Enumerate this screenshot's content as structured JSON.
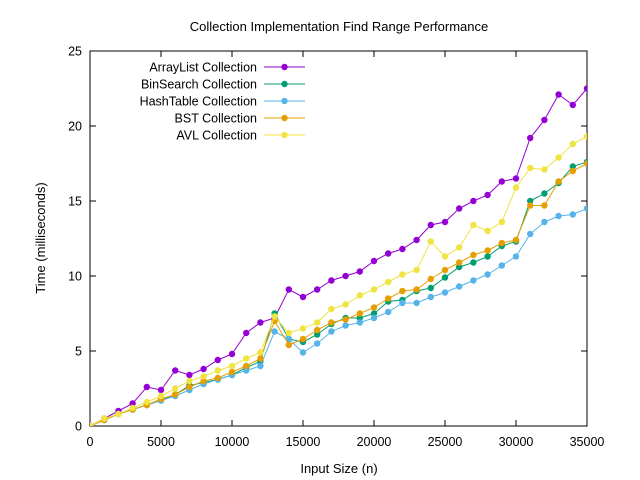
{
  "chart_data": {
    "type": "line",
    "title": "Collection Implementation Find Range Performance",
    "xlabel": "Input Size (n)",
    "ylabel": "Time (milliseconds)",
    "xlim": [
      0,
      35000
    ],
    "ylim": [
      0,
      25
    ],
    "xticks": [
      0,
      5000,
      10000,
      15000,
      20000,
      25000,
      30000,
      35000
    ],
    "yticks": [
      0,
      5,
      10,
      15,
      20,
      25
    ],
    "grid": false,
    "legend_position": "top-left",
    "x": [
      0,
      1000,
      2000,
      3000,
      4000,
      5000,
      6000,
      7000,
      8000,
      9000,
      10000,
      11000,
      12000,
      13000,
      14000,
      15000,
      16000,
      17000,
      18000,
      19000,
      20000,
      21000,
      22000,
      23000,
      24000,
      25000,
      26000,
      27000,
      28000,
      29000,
      30000,
      31000,
      32000,
      33000,
      34000,
      35000
    ],
    "series": [
      {
        "name": "ArrayList Collection",
        "color": "#9400d3",
        "values": [
          0.0,
          0.5,
          1.0,
          1.5,
          2.6,
          2.4,
          3.7,
          3.4,
          3.8,
          4.4,
          4.8,
          6.2,
          6.9,
          7.2,
          9.1,
          8.6,
          9.1,
          9.7,
          10.0,
          10.3,
          11.0,
          11.5,
          11.8,
          12.4,
          13.4,
          13.6,
          14.5,
          15.0,
          15.4,
          16.3,
          16.5,
          19.2,
          20.4,
          22.1,
          21.4,
          22.5
        ]
      },
      {
        "name": "BinSearch Collection",
        "color": "#009e73",
        "values": [
          0.0,
          0.4,
          0.8,
          1.1,
          1.4,
          1.7,
          2.1,
          2.7,
          2.9,
          3.1,
          3.4,
          3.9,
          4.3,
          7.5,
          5.8,
          5.6,
          6.1,
          6.8,
          7.2,
          7.2,
          7.5,
          8.3,
          8.4,
          9.0,
          9.2,
          9.9,
          10.6,
          10.9,
          11.3,
          12.0,
          12.3,
          15.0,
          15.5,
          16.2,
          17.3,
          17.6
        ]
      },
      {
        "name": "HashTable Collection",
        "color": "#56b4e9",
        "values": [
          0.0,
          0.4,
          0.8,
          1.1,
          1.4,
          1.7,
          2.0,
          2.4,
          2.8,
          3.1,
          3.4,
          3.7,
          4.0,
          6.3,
          5.8,
          4.9,
          5.5,
          6.3,
          6.7,
          6.9,
          7.2,
          7.6,
          8.2,
          8.2,
          8.6,
          8.9,
          9.3,
          9.7,
          10.1,
          10.7,
          11.3,
          12.8,
          13.6,
          14.0,
          14.1,
          14.5
        ]
      },
      {
        "name": "BST Collection",
        "color": "#e69f00",
        "values": [
          0.0,
          0.4,
          0.8,
          1.1,
          1.4,
          1.8,
          2.1,
          2.6,
          3.0,
          3.2,
          3.6,
          4.0,
          4.5,
          7.0,
          5.4,
          5.8,
          6.4,
          6.9,
          7.1,
          7.5,
          7.9,
          8.5,
          9.0,
          9.1,
          9.8,
          10.4,
          10.9,
          11.4,
          11.7,
          12.2,
          12.4,
          14.7,
          14.7,
          16.3,
          17.0,
          17.5
        ]
      },
      {
        "name": "AVL Collection",
        "color": "#f0e442",
        "values": [
          0.0,
          0.5,
          0.8,
          1.2,
          1.6,
          2.0,
          2.5,
          3.0,
          3.3,
          3.7,
          4.0,
          4.5,
          4.9,
          7.3,
          6.2,
          6.5,
          6.9,
          7.8,
          8.1,
          8.7,
          9.1,
          9.6,
          10.1,
          10.4,
          12.3,
          11.3,
          11.9,
          13.4,
          13.0,
          13.6,
          15.9,
          17.2,
          17.1,
          17.9,
          18.8,
          19.3
        ]
      }
    ]
  }
}
